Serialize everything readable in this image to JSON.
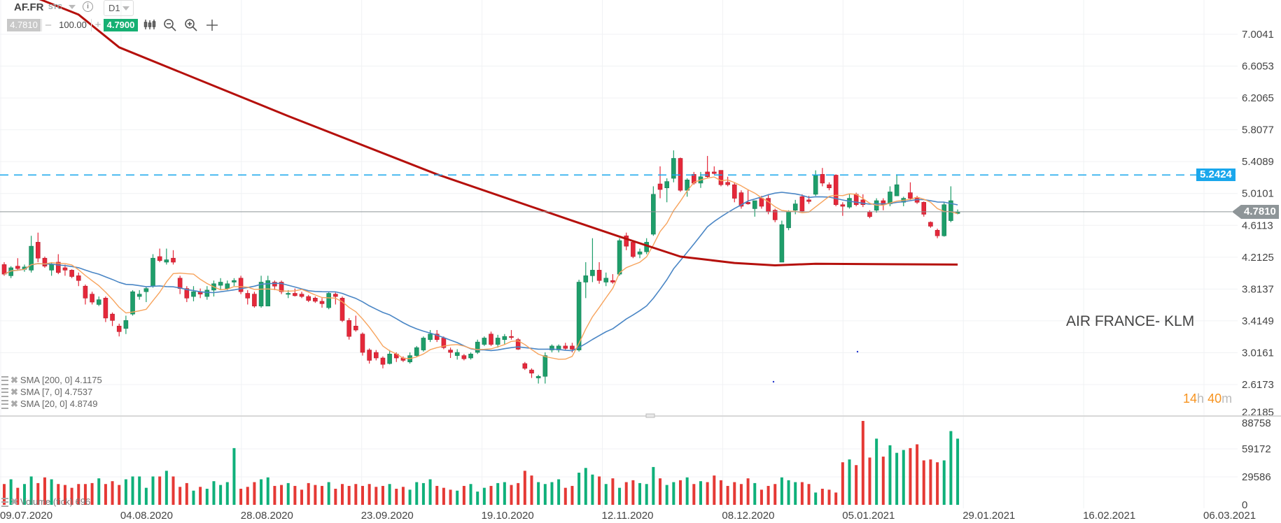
{
  "toolbar": {
    "symbol": "AF.FR",
    "type": "STC",
    "timeframe": "D1",
    "bid": "4.7810",
    "quantity": "100.00",
    "ask": "4.7900",
    "minus": "–",
    "plus": "+",
    "info": "i",
    "icons": [
      "chart-type-icon",
      "zoom-out-icon",
      "zoom-in-icon",
      "crosshair-icon"
    ]
  },
  "indicators": [
    {
      "label": "SMA [200, 0] 4.1175"
    },
    {
      "label": "SMA [7, 0] 4.7537"
    },
    {
      "label": "SMA [20, 0] 4.8749"
    }
  ],
  "volume_label": "Volume (tick) 696",
  "instrument_name": "AIR FRANCE- KLM",
  "timer": {
    "h": "14",
    "h_unit": "h",
    "m": "40",
    "m_unit": "m"
  },
  "price_lines": {
    "level": "5.2424",
    "current": "4.7810"
  },
  "colors": {
    "up": "#1e9e6a",
    "down": "#e5283a",
    "sma7": "#f7a35c",
    "sma20": "#4a86c5",
    "sma200": "#b5100c",
    "level": "#1aa7ec",
    "current": "#8e9598"
  },
  "chart_data": {
    "type": "candlestick",
    "y_ticks": [
      "7.0041",
      "6.6053",
      "6.2065",
      "5.8077",
      "5.4089",
      "5.0101",
      "4.6113",
      "4.2125",
      "3.8137",
      "3.4149",
      "3.0161",
      "2.6173",
      "2.2185"
    ],
    "ylim": [
      2.2185,
      7.0041
    ],
    "volume_ticks": [
      "88758",
      "59172",
      "29586",
      "0"
    ],
    "volume_max": 88758,
    "x_ticks": [
      "09.07.2020",
      "04.08.2020",
      "28.08.2020",
      "23.09.2020",
      "19.10.2020",
      "12.11.2020",
      "08.12.2020",
      "05.01.2021",
      "29.01.2021",
      "16.02.2021",
      "06.03.2021"
    ],
    "ohlc": [
      [
        4.12,
        4.15,
        3.98,
        4.0
      ],
      [
        3.98,
        4.1,
        3.95,
        4.08
      ],
      [
        4.1,
        4.2,
        4.05,
        4.07
      ],
      [
        4.06,
        4.12,
        4.03,
        4.09
      ],
      [
        4.05,
        4.48,
        4.02,
        4.35
      ],
      [
        4.4,
        4.52,
        4.15,
        4.2
      ],
      [
        4.2,
        4.22,
        4.08,
        4.1
      ],
      [
        4.05,
        4.15,
        3.98,
        4.12
      ],
      [
        4.15,
        4.25,
        4.0,
        4.02
      ],
      [
        4.08,
        4.12,
        3.98,
        4.05
      ],
      [
        4.05,
        4.06,
        3.95,
        3.97
      ],
      [
        3.98,
        4.02,
        3.85,
        3.92
      ],
      [
        3.85,
        3.87,
        3.62,
        3.7
      ],
      [
        3.75,
        3.78,
        3.62,
        3.65
      ],
      [
        3.62,
        3.72,
        3.6,
        3.68
      ],
      [
        3.7,
        3.72,
        3.4,
        3.45
      ],
      [
        3.5,
        3.52,
        3.35,
        3.42
      ],
      [
        3.35,
        3.38,
        3.22,
        3.28
      ],
      [
        3.32,
        3.48,
        3.25,
        3.42
      ],
      [
        3.5,
        3.8,
        3.48,
        3.78
      ],
      [
        3.72,
        3.8,
        3.68,
        3.75
      ],
      [
        3.78,
        3.84,
        3.65,
        3.82
      ],
      [
        3.85,
        4.25,
        3.83,
        4.2
      ],
      [
        4.22,
        4.32,
        4.15,
        4.17
      ],
      [
        4.15,
        4.32,
        4.12,
        4.18
      ],
      [
        4.2,
        4.3,
        4.12,
        4.15
      ],
      [
        3.95,
        3.98,
        3.75,
        3.82
      ],
      [
        3.82,
        3.85,
        3.65,
        3.7
      ],
      [
        3.72,
        3.85,
        3.66,
        3.78
      ],
      [
        3.78,
        3.82,
        3.7,
        3.75
      ],
      [
        3.72,
        3.85,
        3.68,
        3.8
      ],
      [
        3.8,
        3.92,
        3.72,
        3.88
      ],
      [
        3.86,
        3.95,
        3.8,
        3.9
      ],
      [
        3.82,
        3.92,
        3.8,
        3.88
      ],
      [
        3.9,
        3.95,
        3.85,
        3.92
      ],
      [
        3.95,
        3.98,
        3.75,
        3.78
      ],
      [
        3.76,
        3.8,
        3.62,
        3.7
      ],
      [
        3.75,
        3.78,
        3.58,
        3.6
      ],
      [
        3.6,
        3.98,
        3.58,
        3.9
      ],
      [
        3.6,
        3.98,
        3.6,
        3.92
      ],
      [
        3.9,
        3.92,
        3.8,
        3.85
      ],
      [
        3.9,
        3.92,
        3.75,
        3.78
      ],
      [
        3.75,
        3.8,
        3.7,
        3.76
      ],
      [
        3.76,
        3.82,
        3.72,
        3.73
      ],
      [
        3.75,
        3.78,
        3.7,
        3.72
      ],
      [
        3.72,
        3.74,
        3.65,
        3.67
      ],
      [
        3.7,
        3.72,
        3.64,
        3.66
      ],
      [
        3.66,
        3.7,
        3.58,
        3.63
      ],
      [
        3.58,
        3.78,
        3.56,
        3.76
      ],
      [
        3.75,
        3.77,
        3.62,
        3.72
      ],
      [
        3.7,
        3.72,
        3.4,
        3.42
      ],
      [
        3.42,
        3.45,
        3.18,
        3.22
      ],
      [
        3.35,
        3.48,
        3.28,
        3.3
      ],
      [
        3.25,
        3.27,
        2.98,
        3.02
      ],
      [
        3.05,
        3.07,
        2.88,
        2.92
      ],
      [
        3.02,
        3.05,
        2.92,
        2.95
      ],
      [
        2.95,
        2.97,
        2.82,
        2.87
      ],
      [
        2.88,
        3.05,
        2.87,
        3.0
      ],
      [
        3.0,
        3.02,
        2.9,
        2.95
      ],
      [
        2.95,
        2.97,
        2.9,
        2.92
      ],
      [
        2.9,
        3.02,
        2.88,
        2.98
      ],
      [
        2.98,
        3.1,
        2.96,
        3.08
      ],
      [
        3.05,
        3.22,
        3.03,
        3.2
      ],
      [
        3.18,
        3.3,
        3.15,
        3.25
      ],
      [
        3.25,
        3.3,
        3.15,
        3.18
      ],
      [
        3.2,
        3.22,
        3.06,
        3.08
      ],
      [
        3.05,
        3.08,
        2.95,
        3.02
      ],
      [
        2.98,
        3.06,
        2.93,
        3.02
      ],
      [
        2.98,
        3.0,
        2.92,
        2.94
      ],
      [
        2.95,
        3.02,
        2.93,
        3.0
      ],
      [
        3.02,
        3.18,
        3.0,
        3.15
      ],
      [
        3.12,
        3.22,
        3.1,
        3.2
      ],
      [
        3.25,
        3.28,
        3.1,
        3.12
      ],
      [
        3.12,
        3.24,
        3.08,
        3.2
      ],
      [
        3.18,
        3.25,
        3.12,
        3.22
      ],
      [
        3.22,
        3.3,
        3.18,
        3.21
      ],
      [
        3.18,
        3.2,
        3.05,
        3.06
      ],
      [
        2.88,
        2.9,
        2.8,
        2.82
      ],
      [
        2.8,
        2.82,
        2.7,
        2.76
      ],
      [
        2.7,
        2.74,
        2.63,
        2.72
      ],
      [
        2.72,
        3.02,
        2.63,
        2.98
      ],
      [
        3.05,
        3.12,
        3.02,
        3.1
      ],
      [
        3.05,
        3.12,
        3.02,
        3.1
      ],
      [
        3.1,
        3.14,
        3.05,
        3.07
      ],
      [
        3.1,
        3.14,
        3.02,
        3.06
      ],
      [
        3.05,
        3.93,
        3.03,
        3.9
      ],
      [
        3.9,
        4.15,
        3.7,
        3.98
      ],
      [
        3.98,
        4.45,
        3.9,
        4.05
      ],
      [
        4.05,
        4.15,
        3.88,
        3.92
      ],
      [
        3.9,
        4.02,
        3.85,
        3.95
      ],
      [
        3.92,
        4.0,
        3.88,
        3.9
      ],
      [
        4.0,
        4.45,
        3.98,
        4.42
      ],
      [
        4.48,
        4.52,
        4.3,
        4.35
      ],
      [
        4.4,
        4.42,
        4.2,
        4.22
      ],
      [
        4.25,
        4.32,
        4.2,
        4.28
      ],
      [
        4.28,
        4.45,
        4.25,
        4.4
      ],
      [
        4.5,
        5.1,
        4.48,
        5.0
      ],
      [
        5.13,
        5.35,
        4.95,
        5.06
      ],
      [
        5.08,
        5.2,
        4.9,
        5.16
      ],
      [
        5.2,
        5.55,
        5.15,
        5.45
      ],
      [
        5.45,
        5.46,
        5.03,
        5.05
      ],
      [
        5.05,
        5.2,
        4.97,
        5.18
      ],
      [
        5.25,
        5.28,
        5.12,
        5.14
      ],
      [
        5.14,
        5.28,
        5.08,
        5.22
      ],
      [
        5.28,
        5.48,
        5.2,
        5.22
      ],
      [
        5.28,
        5.35,
        5.25,
        5.26
      ],
      [
        5.3,
        5.3,
        5.1,
        5.12
      ],
      [
        5.15,
        5.22,
        5.1,
        5.12
      ],
      [
        5.12,
        5.15,
        4.9,
        4.95
      ],
      [
        5.02,
        5.05,
        4.82,
        4.85
      ],
      [
        4.9,
        5.05,
        4.87,
        4.88
      ],
      [
        4.82,
        4.92,
        4.72,
        4.92
      ],
      [
        4.95,
        4.98,
        4.82,
        4.85
      ],
      [
        4.95,
        5.0,
        4.75,
        4.78
      ],
      [
        4.8,
        4.82,
        4.65,
        4.68
      ],
      [
        4.15,
        4.67,
        4.15,
        4.62
      ],
      [
        4.58,
        4.8,
        4.55,
        4.78
      ],
      [
        4.8,
        4.93,
        4.75,
        4.88
      ],
      [
        4.97,
        5.0,
        4.78,
        4.79
      ],
      [
        4.93,
        4.98,
        4.88,
        4.91
      ],
      [
        5.0,
        5.3,
        4.98,
        5.24
      ],
      [
        5.25,
        5.33,
        5.1,
        5.14
      ],
      [
        5.12,
        5.15,
        5.05,
        5.08
      ],
      [
        5.24,
        5.25,
        4.85,
        4.87
      ],
      [
        4.87,
        4.9,
        4.73,
        4.85
      ],
      [
        4.84,
        5.0,
        4.82,
        4.95
      ],
      [
        5.0,
        5.02,
        4.85,
        4.87
      ],
      [
        4.93,
        5.0,
        4.84,
        4.87
      ],
      [
        4.78,
        4.8,
        4.7,
        4.72
      ],
      [
        4.8,
        4.95,
        4.77,
        4.92
      ],
      [
        4.92,
        4.95,
        4.8,
        4.87
      ],
      [
        4.88,
        5.1,
        4.85,
        5.03
      ],
      [
        4.98,
        5.25,
        4.98,
        5.12
      ],
      [
        4.9,
        4.97,
        4.85,
        4.95
      ],
      [
        5.02,
        5.15,
        4.93,
        4.95
      ],
      [
        4.96,
        4.98,
        4.88,
        4.9
      ],
      [
        4.9,
        4.91,
        4.72,
        4.75
      ],
      [
        4.65,
        4.66,
        4.58,
        4.6
      ],
      [
        4.55,
        4.57,
        4.45,
        4.48
      ],
      [
        4.48,
        4.9,
        4.47,
        4.87
      ],
      [
        4.67,
        5.1,
        4.65,
        4.92
      ],
      [
        4.76,
        4.81,
        4.75,
        4.78
      ]
    ],
    "volume": [
      22000,
      27000,
      18000,
      22000,
      30000,
      23000,
      29000,
      27000,
      22000,
      21000,
      18000,
      22000,
      22000,
      23000,
      28000,
      22000,
      25000,
      21000,
      27000,
      30000,
      30000,
      18000,
      30000,
      30000,
      36000,
      30000,
      19000,
      23000,
      15000,
      19000,
      17000,
      25000,
      21000,
      24000,
      60000,
      17000,
      19000,
      24000,
      27000,
      29000,
      20000,
      21000,
      23000,
      20000,
      16000,
      23000,
      21000,
      20000,
      24000,
      17000,
      22000,
      20000,
      22000,
      20000,
      22000,
      19000,
      20000,
      22000,
      17000,
      19000,
      16000,
      24000,
      23000,
      27000,
      20000,
      18000,
      16000,
      15000,
      20000,
      22000,
      14000,
      18000,
      20000,
      23000,
      24000,
      21000,
      23000,
      36000,
      31000,
      24000,
      22000,
      24000,
      27000,
      18000,
      20000,
      34000,
      39000,
      32000,
      30000,
      22000,
      28000,
      18000,
      24000,
      26000,
      23000,
      22000,
      40000,
      28000,
      21000,
      24000,
      26000,
      29000,
      22000,
      25000,
      24000,
      31000,
      26000,
      20000,
      24000,
      22000,
      28000,
      23000,
      16000,
      20000,
      22000,
      29000,
      26000,
      24000,
      24000,
      22000,
      13000,
      17000,
      16000,
      13000,
      45000,
      48000,
      42000,
      88758,
      50000,
      70000,
      51000,
      63000,
      55000,
      58000,
      60000,
      64000,
      47000,
      48000,
      45000,
      47000,
      78000,
      70000
    ],
    "sma200_points": [
      [
        0,
        7.62
      ],
      [
        11,
        7.25
      ],
      [
        17,
        6.84
      ],
      [
        42,
        5.98
      ],
      [
        64,
        5.25
      ],
      [
        84,
        4.67
      ],
      [
        91,
        4.47
      ],
      [
        100,
        4.22
      ],
      [
        108,
        4.14
      ],
      [
        114,
        4.11
      ],
      [
        120,
        4.13
      ],
      [
        141,
        4.12
      ]
    ],
    "series": [
      {
        "name": "SMA 200",
        "period": 200
      },
      {
        "name": "SMA 7",
        "period": 7
      },
      {
        "name": "SMA 20",
        "period": 20
      }
    ]
  }
}
